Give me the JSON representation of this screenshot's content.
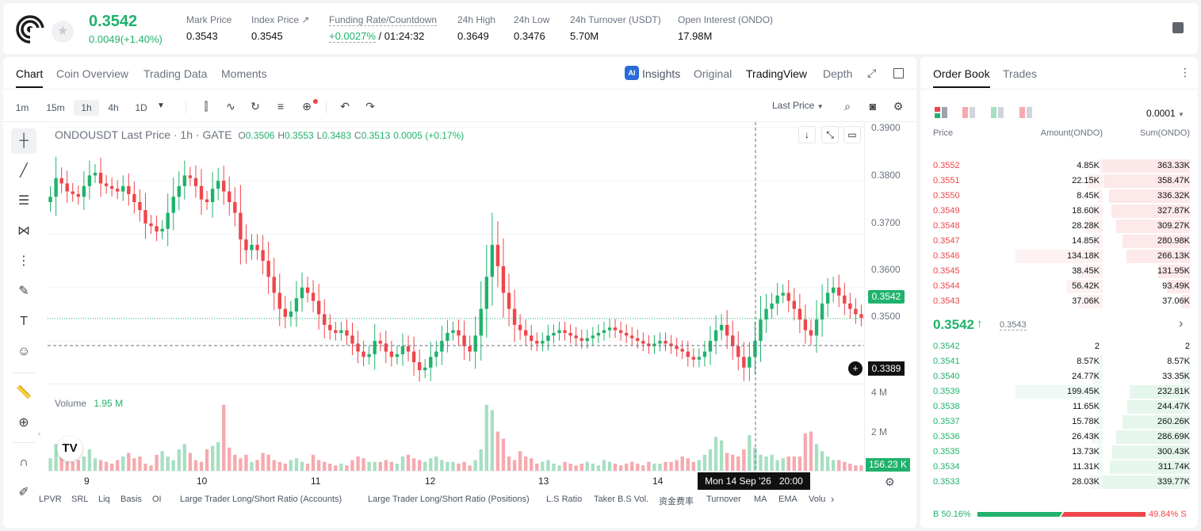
{
  "header": {
    "price": "0.3542",
    "change": "0.0049(+1.40%)",
    "stats": [
      {
        "label": "Mark Price",
        "value": "0.3543"
      },
      {
        "label": "Index Price ↗",
        "value": "0.3545"
      },
      {
        "label": "Funding Rate/Countdown",
        "value": "+0.0027%",
        "value2": "/ 01:24:32"
      },
      {
        "label": "24h High",
        "value": "0.3649"
      },
      {
        "label": "24h Low",
        "value": "0.3476"
      },
      {
        "label": "24h Turnover (USDT)",
        "value": "5.70M"
      },
      {
        "label": "Open Interest (ONDO)",
        "value": "17.98M"
      }
    ]
  },
  "chart_tabs": [
    "Chart",
    "Coin Overview",
    "Trading Data",
    "Moments"
  ],
  "view_tabs": [
    "Insights",
    "Original",
    "TradingView",
    "Depth"
  ],
  "insights_badge": "AI",
  "timeframes": [
    "1m",
    "15m",
    "1h",
    "4h",
    "1D"
  ],
  "price_type": "Last Price",
  "chart_info": {
    "symbol": "ONDOUSDT Last Price · 1h · GATE",
    "o_label": "O",
    "o": "0.3506",
    "h_label": "H",
    "h": "0.3553",
    "l_label": "L",
    "l": "0.3483",
    "c_label": "C",
    "c": "0.3513",
    "chg": "0.0005 (+0.17%)"
  },
  "volume_label": "Volume",
  "volume_value": "1.95 M",
  "price_axis": [
    "0.3900",
    "0.3800",
    "0.3700",
    "0.3600",
    "0.3500"
  ],
  "vol_axis": [
    "4 M",
    "2 M"
  ],
  "current_price_tag": "0.3542",
  "crosshair_price_tag": "0.3389",
  "volume_tag": "156.23 K",
  "x_labels": [
    "9",
    "10",
    "11",
    "12",
    "13",
    "14"
  ],
  "crosshair_time": "Mon 14 Sep '26   20:00",
  "indicators": [
    "LPVR",
    "SRL",
    "Liq",
    "Basis",
    "OI",
    "Large Trader Long/Short Ratio (Accounts)",
    "Large Trader Long/Short Ratio (Positions)",
    "L.S Ratio",
    "Taker B.S Vol.",
    "资金费率",
    "Turnover",
    "MA",
    "EMA",
    "Volu"
  ],
  "colors": {
    "up": "#20b26c",
    "down": "#ef454a",
    "vol_up": "#a7dfc3",
    "vol_down": "#f5aab0"
  },
  "chart_data": {
    "type": "candlestick",
    "title": "ONDOUSDT Last Price · 1h · GATE",
    "ylim": [
      0.342,
      0.391
    ],
    "y_ticks": [
      0.39,
      0.38,
      0.37,
      0.36,
      0.35
    ],
    "x_ticks": [
      "9",
      "10",
      "11",
      "12",
      "13",
      "14"
    ],
    "current_price": 0.3542,
    "crosshair_price": 0.3389,
    "close": [
      0.377,
      0.3805,
      0.3795,
      0.378,
      0.3775,
      0.377,
      0.379,
      0.381,
      0.3815,
      0.3795,
      0.379,
      0.3785,
      0.378,
      0.379,
      0.3775,
      0.376,
      0.3745,
      0.372,
      0.3715,
      0.3705,
      0.371,
      0.374,
      0.377,
      0.379,
      0.381,
      0.3805,
      0.379,
      0.3765,
      0.376,
      0.3785,
      0.38,
      0.378,
      0.376,
      0.374,
      0.369,
      0.367,
      0.368,
      0.367,
      0.365,
      0.362,
      0.359,
      0.356,
      0.3545,
      0.3555,
      0.358,
      0.36,
      0.359,
      0.3575,
      0.355,
      0.353,
      0.352,
      0.3515,
      0.352,
      0.351,
      0.3495,
      0.348,
      0.347,
      0.3475,
      0.35,
      0.3495,
      0.348,
      0.347,
      0.3475,
      0.349,
      0.348,
      0.346,
      0.3445,
      0.345,
      0.347,
      0.348,
      0.35,
      0.3515,
      0.352,
      0.351,
      0.349,
      0.348,
      0.351,
      0.356,
      0.362,
      0.368,
      0.364,
      0.359,
      0.356,
      0.353,
      0.352,
      0.351,
      0.35,
      0.3495,
      0.35,
      0.351,
      0.3515,
      0.352,
      0.3515,
      0.351,
      0.3505,
      0.35,
      0.3505,
      0.351,
      0.3515,
      0.352,
      0.3525,
      0.352,
      0.3515,
      0.351,
      0.3505,
      0.35,
      0.3495,
      0.349,
      0.3495,
      0.35,
      0.3495,
      0.349,
      0.3485,
      0.348,
      0.347,
      0.3465,
      0.347,
      0.348,
      0.35,
      0.352,
      0.353,
      0.351,
      0.349,
      0.347,
      0.345,
      0.347,
      0.35,
      0.354,
      0.356,
      0.357,
      0.3585,
      0.359,
      0.3575,
      0.356,
      0.354,
      0.352,
      0.351,
      0.354,
      0.357,
      0.359,
      0.36,
      0.3585,
      0.357,
      0.356,
      0.355,
      0.3543
    ],
    "volume_unit": "M",
    "volume_ylim": [
      0,
      4
    ],
    "volume": [
      0.7,
      1.5,
      1.1,
      0.5,
      0.5,
      0.6,
      0.8,
      1.2,
      0.7,
      0.6,
      0.5,
      0.4,
      0.6,
      0.8,
      1.0,
      0.7,
      0.8,
      0.4,
      0.3,
      0.9,
      1.1,
      0.8,
      0.6,
      1.2,
      1.5,
      1.0,
      0.6,
      0.5,
      1.2,
      1.4,
      1.6,
      3.7,
      1.3,
      0.9,
      0.7,
      0.9,
      0.5,
      0.6,
      1.0,
      0.9,
      0.6,
      0.5,
      0.4,
      0.6,
      0.7,
      0.5,
      0.4,
      0.9,
      0.6,
      0.5,
      0.4,
      0.3,
      0.4,
      0.3,
      0.6,
      0.8,
      0.7,
      0.5,
      0.5,
      0.5,
      0.6,
      0.5,
      0.4,
      0.8,
      0.9,
      0.7,
      0.6,
      0.5,
      0.7,
      0.8,
      0.6,
      0.5,
      0.5,
      0.4,
      0.5,
      0.3,
      0.6,
      1.2,
      3.7,
      3.4,
      2.2,
      1.8,
      0.8,
      0.6,
      1.1,
      0.8,
      0.7,
      0.4,
      0.5,
      0.6,
      0.4,
      0.3,
      0.5,
      0.4,
      0.3,
      0.4,
      0.5,
      0.4,
      0.3,
      0.6,
      0.5,
      0.4,
      0.3,
      0.4,
      0.5,
      0.4,
      0.3,
      0.5,
      0.4,
      0.4,
      0.5,
      0.5,
      0.6,
      0.8,
      0.7,
      0.5,
      0.6,
      0.9,
      1.2,
      1.9,
      1.7,
      1.0,
      0.9,
      0.8,
      1.2,
      2.0,
      1.3,
      0.9,
      0.8,
      0.9,
      0.6,
      0.7,
      0.8,
      0.8,
      0.8,
      2.1,
      2.2,
      1.5,
      1.1,
      0.8,
      0.6,
      0.6,
      0.5,
      0.4,
      0.3,
      0.3
    ]
  },
  "orderbook": {
    "tabs": [
      "Order Book",
      "Trades"
    ],
    "precision": "0.0001",
    "headers": [
      "Price",
      "Amount(ONDO)",
      "Sum(ONDO)"
    ],
    "asks": [
      {
        "price": "0.3552",
        "amount": "4.85K",
        "sum": "363.33K",
        "depth": 1.0,
        "amt_frac": 0.04
      },
      {
        "price": "0.3551",
        "amount": "22.15K",
        "sum": "358.47K",
        "depth": 0.99,
        "amt_frac": 0.17
      },
      {
        "price": "0.3550",
        "amount": "8.45K",
        "sum": "336.32K",
        "depth": 0.93,
        "amt_frac": 0.06
      },
      {
        "price": "0.3549",
        "amount": "18.60K",
        "sum": "327.87K",
        "depth": 0.9,
        "amt_frac": 0.14
      },
      {
        "price": "0.3548",
        "amount": "28.28K",
        "sum": "309.27K",
        "depth": 0.85,
        "amt_frac": 0.21
      },
      {
        "price": "0.3547",
        "amount": "14.85K",
        "sum": "280.98K",
        "depth": 0.77,
        "amt_frac": 0.11
      },
      {
        "price": "0.3546",
        "amount": "134.18K",
        "sum": "266.13K",
        "depth": 0.73,
        "amt_frac": 1.0
      },
      {
        "price": "0.3545",
        "amount": "38.45K",
        "sum": "131.95K",
        "depth": 0.36,
        "amt_frac": 0.29
      },
      {
        "price": "0.3544",
        "amount": "56.42K",
        "sum": "93.49K",
        "depth": 0.26,
        "amt_frac": 0.42
      },
      {
        "price": "0.3543",
        "amount": "37.06K",
        "sum": "37.06K",
        "depth": 0.1,
        "amt_frac": 0.28
      }
    ],
    "last_price": "0.3542",
    "last_arrow": "↑",
    "mark_price": "0.3543",
    "bids": [
      {
        "price": "0.3542",
        "amount": "2",
        "sum": "2",
        "depth": 0.0,
        "amt_frac": 0.0
      },
      {
        "price": "0.3541",
        "amount": "8.57K",
        "sum": "8.57K",
        "depth": 0.03,
        "amt_frac": 0.04
      },
      {
        "price": "0.3540",
        "amount": "24.77K",
        "sum": "33.35K",
        "depth": 0.1,
        "amt_frac": 0.12
      },
      {
        "price": "0.3539",
        "amount": "199.45K",
        "sum": "232.81K",
        "depth": 0.69,
        "amt_frac": 1.0
      },
      {
        "price": "0.3538",
        "amount": "11.65K",
        "sum": "244.47K",
        "depth": 0.72,
        "amt_frac": 0.06
      },
      {
        "price": "0.3537",
        "amount": "15.78K",
        "sum": "260.26K",
        "depth": 0.77,
        "amt_frac": 0.08
      },
      {
        "price": "0.3536",
        "amount": "26.43K",
        "sum": "286.69K",
        "depth": 0.85,
        "amt_frac": 0.13
      },
      {
        "price": "0.3535",
        "amount": "13.73K",
        "sum": "300.43K",
        "depth": 0.89,
        "amt_frac": 0.07
      },
      {
        "price": "0.3534",
        "amount": "11.31K",
        "sum": "311.74K",
        "depth": 0.92,
        "amt_frac": 0.06
      },
      {
        "price": "0.3533",
        "amount": "28.03K",
        "sum": "339.77K",
        "depth": 1.0,
        "amt_frac": 0.14
      }
    ],
    "buy_label": "B 50.16%",
    "sell_label": "49.84% S",
    "buy_ratio": 0.5016
  }
}
